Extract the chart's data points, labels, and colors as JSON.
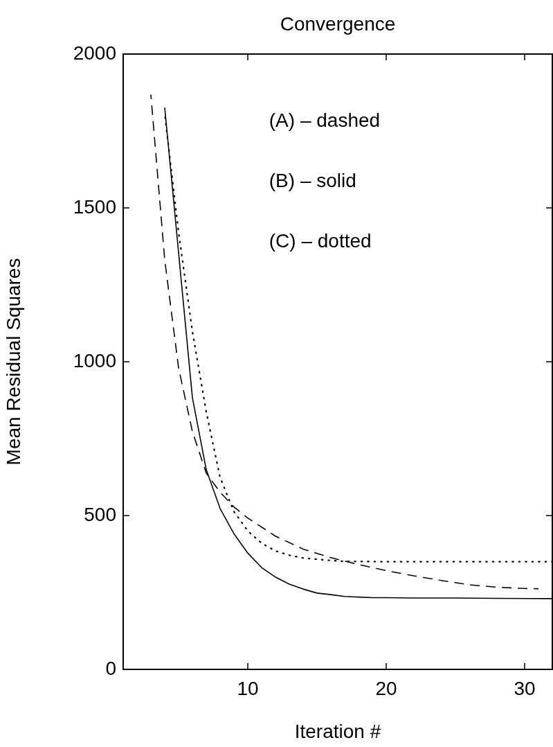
{
  "chart_data": {
    "type": "line",
    "title": "Convergence",
    "xlabel": "Iteration #",
    "ylabel": "Mean Residual Squares",
    "xlim": [
      1,
      32
    ],
    "xticks": [
      10,
      20,
      30
    ],
    "ylim": [
      0,
      2000
    ],
    "yticks": [
      0,
      500,
      1000,
      1500,
      2000
    ],
    "grid": false,
    "legend": false,
    "marker": "none",
    "annotations": [
      "(A) – dashed",
      "(B) – solid",
      "(C) – dotted"
    ],
    "series": [
      {
        "color": "#000000",
        "line_style": "dashed",
        "x": [
          3,
          4,
          5,
          6,
          7,
          8,
          9,
          10,
          12,
          14,
          16,
          18,
          20,
          22,
          24,
          26,
          28,
          30,
          31
        ],
        "values": [
          1868,
          1331,
          980,
          773,
          638,
          576,
          528,
          492,
          433,
          391,
          363,
          341,
          321,
          304,
          289,
          275,
          267,
          263,
          262
        ]
      },
      {
        "color": "#000000",
        "line_style": "solid",
        "x": [
          4,
          5,
          6,
          7,
          8,
          9,
          10,
          11,
          12,
          13,
          14,
          15,
          16,
          17,
          18,
          19,
          20,
          22,
          25,
          28,
          32
        ],
        "values": [
          1826,
          1355,
          883,
          649,
          523,
          441,
          378,
          331,
          300,
          277,
          261,
          248,
          243,
          237,
          235,
          233,
          233,
          232,
          232,
          231,
          230
        ]
      },
      {
        "color": "#000000",
        "line_style": "dotted",
        "x": [
          4,
          5,
          6,
          7,
          8,
          9,
          10,
          11,
          12,
          13,
          14,
          15,
          16,
          17,
          20,
          25,
          32
        ],
        "values": [
          1806,
          1421,
          1098,
          837,
          624,
          513,
          450,
          410,
          385,
          371,
          362,
          358,
          354,
          351,
          350,
          350,
          350
        ]
      }
    ]
  }
}
